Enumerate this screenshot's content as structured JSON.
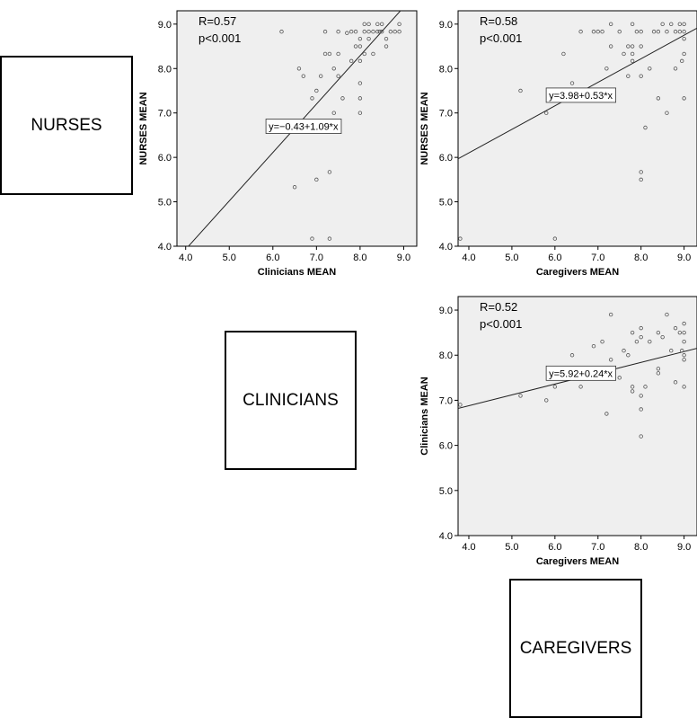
{
  "boxes": {
    "nurses": "NURSES",
    "clinicians": "CLINICIANS",
    "caregivers": "CAREGIVERS"
  },
  "colors": {
    "plot_bg": "#efefef",
    "point": "#555555",
    "line": "#222222",
    "frame": "#000000"
  },
  "chart_data": [
    {
      "id": "nurses-vs-clinicians",
      "type": "scatter",
      "title": "",
      "xlabel": "Clinicians MEAN",
      "ylabel": "NURSES MEAN",
      "xlim": [
        3.8,
        9.3
      ],
      "ylim": [
        4.0,
        9.3
      ],
      "xticks": [
        4.0,
        5.0,
        6.0,
        7.0,
        8.0,
        9.0
      ],
      "yticks": [
        4.0,
        5.0,
        6.0,
        7.0,
        8.0,
        9.0
      ],
      "tick_labels_x": [
        "4.0",
        "5.0",
        "6.0",
        "7.0",
        "8.0",
        "9.0"
      ],
      "tick_labels_y": [
        "4.0",
        "5.0",
        "6.0",
        "7.0",
        "8.0",
        "9.0"
      ],
      "stat_r": "R=0.57",
      "stat_p": "p<0.001",
      "equation": "y=−0.43+1.09*x",
      "equation_anchor": [
        6.7,
        6.7
      ],
      "fit": {
        "intercept": -0.43,
        "slope": 1.09
      },
      "points": [
        [
          6.2,
          8.83
        ],
        [
          6.5,
          5.33
        ],
        [
          6.6,
          8.0
        ],
        [
          6.7,
          7.83
        ],
        [
          6.9,
          7.33
        ],
        [
          6.9,
          4.17
        ],
        [
          7.0,
          7.5
        ],
        [
          7.0,
          5.5
        ],
        [
          7.1,
          7.83
        ],
        [
          7.2,
          8.33
        ],
        [
          7.2,
          8.83
        ],
        [
          7.3,
          8.33
        ],
        [
          7.3,
          5.67
        ],
        [
          7.3,
          4.17
        ],
        [
          7.4,
          8.0
        ],
        [
          7.4,
          7.0
        ],
        [
          7.5,
          7.83
        ],
        [
          7.5,
          8.33
        ],
        [
          7.5,
          8.83
        ],
        [
          7.6,
          7.33
        ],
        [
          7.7,
          8.8
        ],
        [
          7.8,
          8.17
        ],
        [
          7.8,
          8.83
        ],
        [
          7.9,
          8.83
        ],
        [
          7.9,
          8.5
        ],
        [
          8.0,
          8.67
        ],
        [
          8.0,
          8.5
        ],
        [
          8.0,
          7.67
        ],
        [
          8.0,
          7.33
        ],
        [
          8.0,
          7.0
        ],
        [
          8.0,
          8.17
        ],
        [
          8.1,
          8.33
        ],
        [
          8.1,
          8.83
        ],
        [
          8.1,
          9.0
        ],
        [
          8.2,
          8.83
        ],
        [
          8.2,
          8.67
        ],
        [
          8.3,
          8.83
        ],
        [
          8.3,
          8.33
        ],
        [
          8.4,
          8.83
        ],
        [
          8.4,
          9.0
        ],
        [
          8.5,
          8.83
        ],
        [
          8.5,
          9.0
        ],
        [
          8.6,
          8.67
        ],
        [
          8.6,
          8.5
        ],
        [
          8.7,
          8.83
        ],
        [
          8.8,
          8.83
        ],
        [
          8.9,
          8.83
        ],
        [
          8.9,
          9.0
        ],
        [
          8.45,
          8.83
        ],
        [
          8.2,
          9.0
        ]
      ]
    },
    {
      "id": "nurses-vs-caregivers",
      "type": "scatter",
      "title": "",
      "xlabel": "Caregivers MEAN",
      "ylabel": "NURSES MEAN",
      "xlim": [
        3.75,
        9.3
      ],
      "ylim": [
        4.0,
        9.3
      ],
      "xticks": [
        4.0,
        5.0,
        6.0,
        7.0,
        8.0,
        9.0
      ],
      "yticks": [
        4.0,
        5.0,
        6.0,
        7.0,
        8.0,
        9.0
      ],
      "tick_labels_x": [
        "4.0",
        "5.0",
        "6.0",
        "7.0",
        "8.0",
        "9.0"
      ],
      "tick_labels_y": [
        "4.0",
        "5.0",
        "6.0",
        "7.0",
        "8.0",
        "9.0"
      ],
      "stat_r": "R=0.58",
      "stat_p": "p<0.001",
      "equation": "y=3.98+0.53*x",
      "equation_anchor": [
        6.6,
        7.4
      ],
      "fit": {
        "intercept": 3.98,
        "slope": 0.53
      },
      "points": [
        [
          3.8,
          4.17
        ],
        [
          5.2,
          7.5
        ],
        [
          5.8,
          7.0
        ],
        [
          6.0,
          4.17
        ],
        [
          6.2,
          8.33
        ],
        [
          6.4,
          7.67
        ],
        [
          6.6,
          8.83
        ],
        [
          6.9,
          8.83
        ],
        [
          7.0,
          8.83
        ],
        [
          7.1,
          8.83
        ],
        [
          7.2,
          8.0
        ],
        [
          7.3,
          9.0
        ],
        [
          7.3,
          8.5
        ],
        [
          7.5,
          8.83
        ],
        [
          7.6,
          8.33
        ],
        [
          7.7,
          8.5
        ],
        [
          7.7,
          7.83
        ],
        [
          7.8,
          9.0
        ],
        [
          7.8,
          8.33
        ],
        [
          7.8,
          8.17
        ],
        [
          7.9,
          8.83
        ],
        [
          8.0,
          8.83
        ],
        [
          8.0,
          8.5
        ],
        [
          8.0,
          7.83
        ],
        [
          8.0,
          5.67
        ],
        [
          8.0,
          5.5
        ],
        [
          8.1,
          6.67
        ],
        [
          8.2,
          8.0
        ],
        [
          8.3,
          8.83
        ],
        [
          8.4,
          7.33
        ],
        [
          8.4,
          8.83
        ],
        [
          8.5,
          9.0
        ],
        [
          8.6,
          7.0
        ],
        [
          8.6,
          8.83
        ],
        [
          8.7,
          9.0
        ],
        [
          8.8,
          8.0
        ],
        [
          8.8,
          8.83
        ],
        [
          8.9,
          9.0
        ],
        [
          8.9,
          8.83
        ],
        [
          9.0,
          9.0
        ],
        [
          9.0,
          8.83
        ],
        [
          9.0,
          8.67
        ],
        [
          9.0,
          8.33
        ],
        [
          9.0,
          7.33
        ],
        [
          8.95,
          8.17
        ],
        [
          7.8,
          8.5
        ]
      ]
    },
    {
      "id": "clinicians-vs-caregivers",
      "type": "scatter",
      "title": "",
      "xlabel": "Caregivers MEAN",
      "ylabel": "Clinicians MEAN",
      "xlim": [
        3.75,
        9.3
      ],
      "ylim": [
        4.0,
        9.3
      ],
      "xticks": [
        4.0,
        5.0,
        6.0,
        7.0,
        8.0,
        9.0
      ],
      "yticks": [
        4.0,
        5.0,
        6.0,
        7.0,
        8.0,
        9.0
      ],
      "tick_labels_x": [
        "4.0",
        "5.0",
        "6.0",
        "7.0",
        "8.0",
        "9.0"
      ],
      "tick_labels_y": [
        "4.0",
        "5.0",
        "6.0",
        "7.0",
        "8.0",
        "9.0"
      ],
      "stat_r": "R=0.52",
      "stat_p": "p<0.001",
      "equation": "y=5.92+0.24*x",
      "equation_anchor": [
        6.6,
        7.6
      ],
      "fit": {
        "intercept": 5.92,
        "slope": 0.24
      },
      "points": [
        [
          3.8,
          6.9
        ],
        [
          5.2,
          7.1
        ],
        [
          5.8,
          7.0
        ],
        [
          6.0,
          7.3
        ],
        [
          6.4,
          8.0
        ],
        [
          6.6,
          7.3
        ],
        [
          6.9,
          8.2
        ],
        [
          7.0,
          7.7
        ],
        [
          7.1,
          8.3
        ],
        [
          7.2,
          6.7
        ],
        [
          7.3,
          8.9
        ],
        [
          7.3,
          7.9
        ],
        [
          7.5,
          7.5
        ],
        [
          7.6,
          8.1
        ],
        [
          7.7,
          8.0
        ],
        [
          7.8,
          8.5
        ],
        [
          7.8,
          7.2
        ],
        [
          7.8,
          7.3
        ],
        [
          7.9,
          8.3
        ],
        [
          8.0,
          8.6
        ],
        [
          8.0,
          7.1
        ],
        [
          8.0,
          6.8
        ],
        [
          8.0,
          6.2
        ],
        [
          8.1,
          7.3
        ],
        [
          8.2,
          8.3
        ],
        [
          8.4,
          7.6
        ],
        [
          8.4,
          8.5
        ],
        [
          8.4,
          7.7
        ],
        [
          8.5,
          8.4
        ],
        [
          8.6,
          8.9
        ],
        [
          8.7,
          8.1
        ],
        [
          8.8,
          8.6
        ],
        [
          8.8,
          7.4
        ],
        [
          8.9,
          8.5
        ],
        [
          9.0,
          8.7
        ],
        [
          9.0,
          8.5
        ],
        [
          9.0,
          8.0
        ],
        [
          9.0,
          7.9
        ],
        [
          9.0,
          7.3
        ],
        [
          8.95,
          8.1
        ],
        [
          9.0,
          8.3
        ],
        [
          8.0,
          8.4
        ]
      ]
    }
  ]
}
